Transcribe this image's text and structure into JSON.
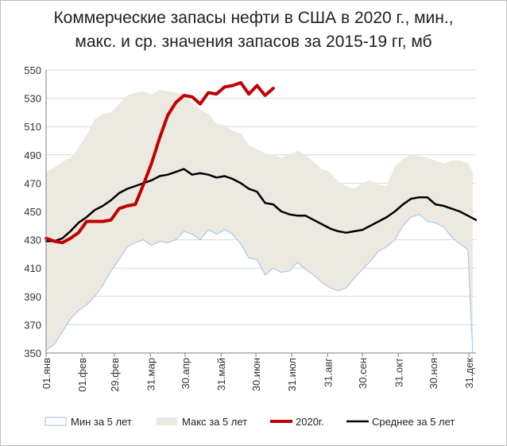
{
  "chart_data": {
    "type": "area",
    "title": "Коммерческие запасы нефти в США в 2020 г., мин., макс. и ср. значения запасов за 2015-19 гг, мб",
    "title_lines": [
      "Коммерческие запасы нефти в США в 2020 г., мин.,",
      "макс. и ср. значения запасов за 2015-19 гг, мб"
    ],
    "ylim": [
      350,
      550
    ],
    "yticks": [
      350,
      370,
      390,
      410,
      430,
      450,
      470,
      490,
      510,
      530,
      550
    ],
    "xlim": [
      0,
      53
    ],
    "xticks": [
      {
        "label": "01.янв",
        "week": 0
      },
      {
        "label": "01.фев",
        "week": 4.43
      },
      {
        "label": "29.фев",
        "week": 8.43
      },
      {
        "label": "31.мар",
        "week": 12.86
      },
      {
        "label": "30.апр",
        "week": 17.14
      },
      {
        "label": "31.май",
        "week": 21.57
      },
      {
        "label": "30.июн",
        "week": 25.86
      },
      {
        "label": "31.июл",
        "week": 30.29
      },
      {
        "label": "31.авг",
        "week": 34.71
      },
      {
        "label": "30.сен",
        "week": 39
      },
      {
        "label": "31.окт",
        "week": 43.43
      },
      {
        "label": "30.ноя",
        "week": 47.71
      },
      {
        "label": "31.дек",
        "week": 52.14
      }
    ],
    "grid": true,
    "legend_position": "bottom",
    "colors": {
      "min": "#9dc3e6",
      "max": "#ece9e0",
      "y2020": "#c00000",
      "avg": "#000000",
      "grid": "#d9d9d9"
    },
    "series": [
      {
        "name": "Мин за 5 лет",
        "kind": "band-lower",
        "x": [
          0,
          1,
          2,
          3,
          4,
          5,
          6,
          7,
          8,
          9,
          10,
          11,
          12,
          13,
          14,
          15,
          16,
          17,
          18,
          19,
          20,
          21,
          22,
          23,
          24,
          25,
          26,
          27,
          28,
          29,
          30,
          31,
          32,
          33,
          34,
          35,
          36,
          37,
          38,
          39,
          40,
          41,
          42,
          43,
          44,
          45,
          46,
          47,
          48,
          49,
          50,
          51,
          52,
          52.6
        ],
        "values": [
          352,
          356,
          365,
          374,
          380,
          384,
          390,
          398,
          408,
          416,
          425,
          428,
          430,
          426,
          429,
          428,
          430,
          436,
          434,
          430,
          437,
          434,
          437,
          434,
          427,
          417,
          416,
          405,
          410,
          407,
          408,
          414,
          409,
          405,
          400,
          396,
          394,
          396,
          403,
          409,
          415,
          422,
          425,
          430,
          440,
          446,
          448,
          443,
          442,
          439,
          432,
          427,
          423,
          350
        ]
      },
      {
        "name": "Макс за 5 лет",
        "kind": "band-upper",
        "x": [
          0,
          1,
          2,
          3,
          4,
          5,
          6,
          7,
          8,
          9,
          10,
          11,
          12,
          13,
          14,
          15,
          16,
          17,
          18,
          19,
          20,
          21,
          22,
          23,
          24,
          25,
          26,
          27,
          28,
          29,
          30,
          31,
          32,
          33,
          34,
          35,
          36,
          37,
          38,
          39,
          40,
          41,
          42,
          43,
          44,
          45,
          46,
          47,
          48,
          49,
          50,
          51,
          52,
          52.6
        ],
        "values": [
          478,
          481,
          485,
          488,
          495,
          504,
          515,
          519,
          520,
          526,
          532,
          534,
          535,
          533,
          536,
          535,
          534,
          532,
          527,
          522,
          519,
          512,
          511,
          507,
          505,
          497,
          494,
          491,
          490,
          488,
          490,
          493,
          490,
          485,
          480,
          478,
          471,
          468,
          466,
          470,
          472,
          469,
          468,
          482,
          487,
          490,
          489,
          488,
          486,
          484,
          486,
          486,
          484,
          478
        ]
      },
      {
        "name": "2020г.",
        "x": [
          0,
          1,
          2,
          3,
          4,
          5,
          6,
          7,
          8,
          9,
          10,
          11,
          12,
          13,
          14,
          15,
          16,
          17,
          18,
          19,
          20,
          21,
          22,
          23,
          24,
          25,
          26,
          27,
          28
        ],
        "values": [
          431,
          429,
          428,
          431,
          435,
          443,
          443,
          443,
          444,
          452,
          454,
          455,
          469,
          484,
          502,
          518,
          527,
          532,
          531,
          526,
          534,
          533,
          538,
          539,
          541,
          533,
          539,
          532,
          537
        ]
      },
      {
        "name": "Среднее за 5 лет",
        "x": [
          0,
          1,
          2,
          3,
          4,
          5,
          6,
          7,
          8,
          9,
          10,
          11,
          12,
          13,
          14,
          15,
          16,
          17,
          18,
          19,
          20,
          21,
          22,
          23,
          24,
          25,
          26,
          27,
          28,
          29,
          30,
          31,
          32,
          33,
          34,
          35,
          36,
          37,
          38,
          39,
          40,
          41,
          42,
          43,
          44,
          45,
          46,
          47,
          48,
          49,
          50,
          51,
          52,
          53
        ],
        "values": [
          429,
          429,
          431,
          436,
          442,
          446,
          451,
          454,
          458,
          463,
          466,
          468,
          470,
          472,
          475,
          476,
          478,
          480,
          476,
          477,
          476,
          474,
          475,
          473,
          470,
          466,
          464,
          456,
          455,
          450,
          448,
          447,
          447,
          444,
          441,
          438,
          436,
          435,
          436,
          437,
          440,
          443,
          446,
          450,
          455,
          459,
          460,
          460,
          455,
          454,
          452,
          450,
          447,
          444
        ]
      }
    ]
  }
}
